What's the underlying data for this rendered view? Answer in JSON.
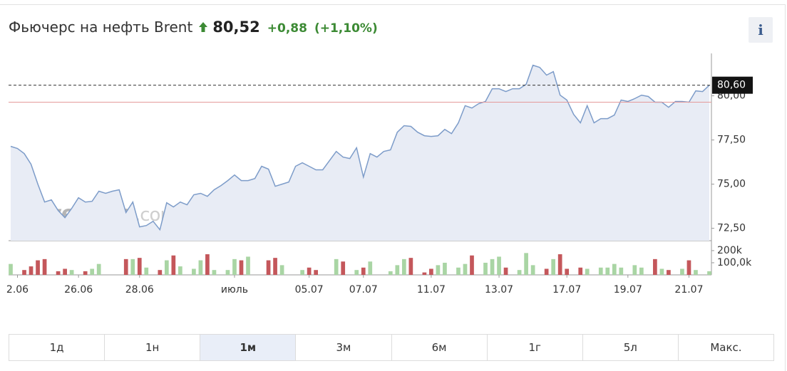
{
  "header": {
    "title": "Фьючерс на нефть Brent",
    "price": "80,52",
    "change": "+0,88",
    "change_pct": "(+1,10%)",
    "info_button": "i"
  },
  "chart_data": {
    "type": "line",
    "values": [
      77.14,
      77.02,
      76.73,
      76.13,
      75.0,
      73.99,
      74.11,
      73.51,
      73.1,
      73.63,
      74.23,
      73.99,
      74.03,
      74.6,
      74.48,
      74.6,
      74.68,
      73.39,
      73.99,
      72.58,
      72.66,
      72.9,
      72.42,
      73.95,
      73.71,
      73.99,
      73.83,
      74.4,
      74.48,
      74.31,
      74.68,
      74.92,
      75.2,
      75.52,
      75.2,
      75.2,
      75.32,
      76.01,
      75.85,
      74.88,
      75.0,
      75.12,
      76.01,
      76.21,
      76.01,
      75.81,
      75.81,
      76.33,
      76.85,
      76.53,
      76.45,
      77.06,
      75.4,
      76.73,
      76.53,
      76.85,
      76.94,
      77.94,
      78.31,
      78.27,
      77.94,
      77.74,
      77.7,
      77.74,
      78.1,
      77.86,
      78.47,
      79.44,
      79.31,
      79.56,
      79.68,
      80.4,
      80.4,
      80.24,
      80.4,
      80.4,
      80.65,
      81.73,
      81.61,
      81.17,
      81.37,
      80.04,
      79.76,
      78.95,
      78.47,
      79.44,
      78.47,
      78.71,
      78.71,
      78.91,
      79.76,
      79.68,
      79.84,
      80.04,
      79.96,
      79.64,
      79.64,
      79.35,
      79.68,
      79.68,
      79.64,
      80.28,
      80.24,
      80.6
    ],
    "color": "#7d9cc9",
    "volumes": [
      90000,
      0,
      40000,
      70000,
      120000,
      130000,
      0,
      30000,
      50000,
      40000,
      0,
      30000,
      50000,
      90000,
      0,
      0,
      0,
      130000,
      130000,
      140000,
      60000,
      0,
      40000,
      120000,
      160000,
      70000,
      0,
      50000,
      120000,
      170000,
      40000,
      0,
      40000,
      130000,
      120000,
      150000,
      0,
      0,
      120000,
      140000,
      80000,
      0,
      0,
      40000,
      60000,
      40000,
      0,
      0,
      130000,
      110000,
      0,
      40000,
      60000,
      110000,
      0,
      0,
      30000,
      80000,
      130000,
      140000,
      0,
      20000,
      50000,
      80000,
      100000,
      0,
      60000,
      90000,
      160000,
      0,
      100000,
      130000,
      150000,
      60000,
      0,
      40000,
      180000,
      80000,
      0,
      50000,
      130000,
      170000,
      50000,
      0,
      60000,
      50000,
      0,
      60000,
      60000,
      90000,
      60000,
      0,
      80000,
      60000,
      0,
      130000,
      50000,
      40000,
      0,
      50000,
      120000,
      40000,
      0,
      30000
    ],
    "volume_up_color": "#a9d5a4",
    "volume_down_color": "#c4575b",
    "xlim": [
      0,
      103
    ],
    "xticks": [
      {
        "value": 1,
        "label": "2.06"
      },
      {
        "value": 10,
        "label": "26.06"
      },
      {
        "value": 19,
        "label": "28.06"
      },
      {
        "value": 33,
        "label": "июль"
      },
      {
        "value": 44,
        "label": "05.07"
      },
      {
        "value": 52,
        "label": "07.07"
      },
      {
        "value": 62,
        "label": "11.07"
      },
      {
        "value": 72,
        "label": "13.07"
      },
      {
        "value": 82,
        "label": "17.07"
      },
      {
        "value": 91,
        "label": "19.07"
      },
      {
        "value": 100,
        "label": "21.07"
      }
    ],
    "ylim": [
      71.8,
      82.4
    ],
    "yticks": [
      {
        "value": 72.5,
        "label": "72,50"
      },
      {
        "value": 75,
        "label": "75,00"
      },
      {
        "value": 77.5,
        "label": "77,50"
      },
      {
        "value": 80,
        "label": "80,00"
      }
    ],
    "volume_lim": [
      0,
      270000
    ],
    "volume_ticks": [
      {
        "value": 100000,
        "label": "100,0k"
      },
      {
        "value": 200000,
        "label": "200k"
      }
    ],
    "last_value": 80.6,
    "last_value_label": "80,60",
    "prev_close": 79.64,
    "watermark": "Investing",
    "watermark_suffix": ".com"
  },
  "timeframes": {
    "options": [
      "1д",
      "1н",
      "1м",
      "3м",
      "6м",
      "1г",
      "5л",
      "Макс."
    ],
    "active": 2
  }
}
